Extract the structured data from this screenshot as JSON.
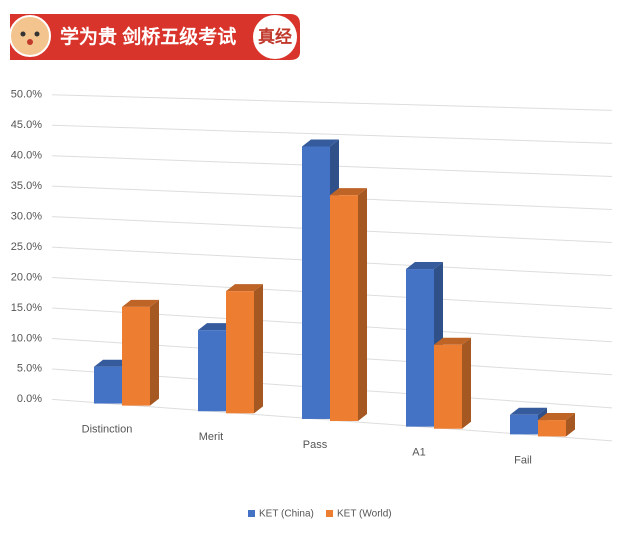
{
  "header": {
    "title": "学为贵 剑桥五级考试",
    "badge": "真经"
  },
  "chart_data": {
    "type": "bar3d",
    "categories": [
      "Distinction",
      "Merit",
      "Pass",
      "A1",
      "Fail"
    ],
    "series": [
      {
        "name": "KET (China)",
        "color": "#4472c4",
        "values": [
          6,
          13,
          43,
          24.5,
          3
        ]
      },
      {
        "name": "KET (World)",
        "color": "#ed7d31",
        "values": [
          16,
          19.5,
          35.5,
          13,
          2.5
        ]
      }
    ],
    "ylim": [
      0,
      50
    ],
    "yticks": [
      {
        "value": 0,
        "label": "0.0%"
      },
      {
        "value": 5,
        "label": "5.0%"
      },
      {
        "value": 10,
        "label": "10.0%"
      },
      {
        "value": 15,
        "label": "15.0%"
      },
      {
        "value": 20,
        "label": "20.0%"
      },
      {
        "value": 25,
        "label": "25.0%"
      },
      {
        "value": 30,
        "label": "30.0%"
      },
      {
        "value": 35,
        "label": "35.0%"
      },
      {
        "value": 40,
        "label": "40.0%"
      },
      {
        "value": 45,
        "label": "45.0%"
      },
      {
        "value": 50,
        "label": "50.0%"
      }
    ],
    "grid": true,
    "legend": "bottom"
  }
}
